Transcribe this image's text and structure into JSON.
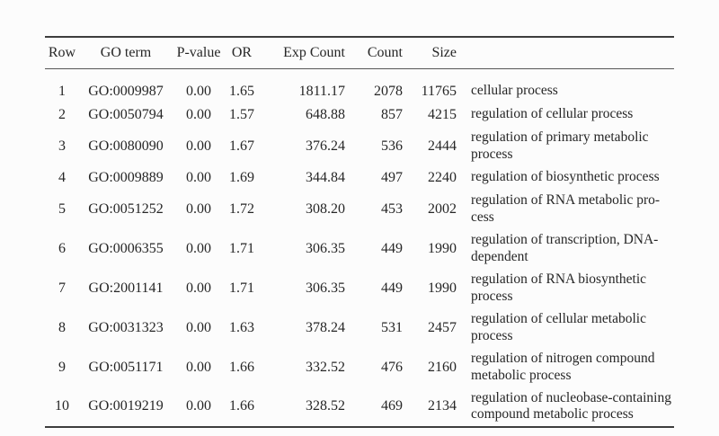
{
  "table": {
    "columns": [
      "Row",
      "GO term",
      "P-value",
      "OR",
      "Exp Count",
      "Count",
      "Size"
    ],
    "rows": [
      {
        "row": "1",
        "go_term": "GO:0009987",
        "p_value": "0.00",
        "odds_ratio": "1.65",
        "exp_count": "1811.17",
        "count": "2078",
        "size": "11765",
        "description": "cellular process"
      },
      {
        "row": "2",
        "go_term": "GO:0050794",
        "p_value": "0.00",
        "odds_ratio": "1.57",
        "exp_count": "648.88",
        "count": "857",
        "size": "4215",
        "description": "regulation of cellular process"
      },
      {
        "row": "3",
        "go_term": "GO:0080090",
        "p_value": "0.00",
        "odds_ratio": "1.67",
        "exp_count": "376.24",
        "count": "536",
        "size": "2444",
        "description": "regulation of primary metabolic\nprocess"
      },
      {
        "row": "4",
        "go_term": "GO:0009889",
        "p_value": "0.00",
        "odds_ratio": "1.69",
        "exp_count": "344.84",
        "count": "497",
        "size": "2240",
        "description": "regulation of biosynthetic process"
      },
      {
        "row": "5",
        "go_term": "GO:0051252",
        "p_value": "0.00",
        "odds_ratio": "1.72",
        "exp_count": "308.20",
        "count": "453",
        "size": "2002",
        "description": "regulation of RNA metabolic pro-\ncess"
      },
      {
        "row": "6",
        "go_term": "GO:0006355",
        "p_value": "0.00",
        "odds_ratio": "1.71",
        "exp_count": "306.35",
        "count": "449",
        "size": "1990",
        "description": "regulation of transcription, DNA-\ndependent"
      },
      {
        "row": "7",
        "go_term": "GO:2001141",
        "p_value": "0.00",
        "odds_ratio": "1.71",
        "exp_count": "306.35",
        "count": "449",
        "size": "1990",
        "description": "regulation of RNA biosynthetic\nprocess"
      },
      {
        "row": "8",
        "go_term": "GO:0031323",
        "p_value": "0.00",
        "odds_ratio": "1.63",
        "exp_count": "378.24",
        "count": "531",
        "size": "2457",
        "description": "regulation of cellular metabolic\nprocess"
      },
      {
        "row": "9",
        "go_term": "GO:0051171",
        "p_value": "0.00",
        "odds_ratio": "1.66",
        "exp_count": "332.52",
        "count": "476",
        "size": "2160",
        "description": "regulation of nitrogen compound\nmetabolic process"
      },
      {
        "row": "10",
        "go_term": "GO:0019219",
        "p_value": "0.00",
        "odds_ratio": "1.66",
        "exp_count": "328.52",
        "count": "469",
        "size": "2134",
        "description": "regulation of nucleobase-containing\ncompound metabolic process"
      }
    ]
  },
  "colors": {
    "background": "#fcfcfc",
    "text": "#262626",
    "rule_heavy": "#3d3d3d",
    "rule_light": "#565656"
  }
}
